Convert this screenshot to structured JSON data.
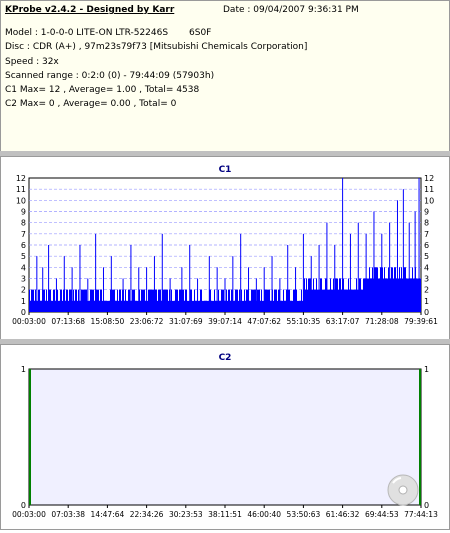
{
  "header": {
    "title": "KProbe v2.4.2 - Designed by Karr",
    "date": "Date : 09/04/2007 9:36:31 PM",
    "model": "Model : 1-0-0-0 LITE-ON LTR-52246S",
    "firmware": "6S0F",
    "disc": "Disc : CDR (A+) , 97m23s79f73 [Mitsubishi Chemicals Corporation]",
    "speed": "Speed : 32x",
    "range": "Scanned range : 0:2:0 (0) - 79:44:09 (57903h)",
    "c1": "C1 Max= 12 , Average= 1.00 , Total= 4538",
    "c2": "C2 Max= 0 , Average= 0.00 , Total= 0"
  },
  "chart_data": [
    {
      "type": "bar",
      "title": "C1",
      "ylim": [
        0,
        12
      ],
      "y_ticks": [
        "0",
        "1",
        "2",
        "3",
        "4",
        "5",
        "6",
        "7",
        "8",
        "9",
        "10",
        "11",
        "12"
      ],
      "x_ticks": [
        "00:03:00",
        "07:13:68",
        "15:08:50",
        "23:06:72",
        "31:07:69",
        "39:07:14",
        "47:07:62",
        "55:10:35",
        "63:17:07",
        "71:28:08",
        "79:39:61"
      ],
      "grid": true,
      "color": "#0000ff",
      "spikes": [
        [
          0.02,
          5
        ],
        [
          0.035,
          4
        ],
        [
          0.05,
          6
        ],
        [
          0.07,
          3
        ],
        [
          0.09,
          5
        ],
        [
          0.11,
          4
        ],
        [
          0.13,
          6
        ],
        [
          0.15,
          3
        ],
        [
          0.17,
          7
        ],
        [
          0.19,
          4
        ],
        [
          0.21,
          5
        ],
        [
          0.24,
          3
        ],
        [
          0.26,
          6
        ],
        [
          0.28,
          4
        ],
        [
          0.3,
          4
        ],
        [
          0.32,
          5
        ],
        [
          0.34,
          7
        ],
        [
          0.36,
          3
        ],
        [
          0.39,
          4
        ],
        [
          0.41,
          6
        ],
        [
          0.43,
          3
        ],
        [
          0.46,
          5
        ],
        [
          0.48,
          4
        ],
        [
          0.5,
          3
        ],
        [
          0.52,
          5
        ],
        [
          0.54,
          7
        ],
        [
          0.56,
          4
        ],
        [
          0.58,
          3
        ],
        [
          0.6,
          4
        ],
        [
          0.62,
          5
        ],
        [
          0.64,
          3
        ],
        [
          0.66,
          6
        ],
        [
          0.68,
          4
        ],
        [
          0.7,
          7
        ],
        [
          0.72,
          5
        ],
        [
          0.74,
          6
        ],
        [
          0.76,
          8
        ],
        [
          0.78,
          6
        ],
        [
          0.8,
          12
        ],
        [
          0.82,
          7
        ],
        [
          0.84,
          8
        ],
        [
          0.86,
          7
        ],
        [
          0.88,
          9
        ],
        [
          0.9,
          7
        ],
        [
          0.92,
          8
        ],
        [
          0.94,
          10
        ],
        [
          0.955,
          11
        ],
        [
          0.97,
          8
        ],
        [
          0.985,
          9
        ],
        [
          0.995,
          12
        ]
      ]
    },
    {
      "type": "bar",
      "title": "C2",
      "ylim": [
        0,
        1
      ],
      "y_ticks": [
        "0",
        "1"
      ],
      "x_ticks": [
        "00:03:00",
        "07:03:38",
        "14:47:64",
        "22:34:26",
        "30:23:53",
        "38:11:51",
        "46:00:40",
        "53:50:63",
        "61:46:32",
        "69:44:53",
        "77:44:13"
      ],
      "grid": true,
      "color": "#008000",
      "values": []
    }
  ],
  "colors": {
    "c1_plot_bg": "#ffffff",
    "c2_plot_bg": "#f0f0ff",
    "grid": "#9a9aff",
    "title": "#000080"
  }
}
